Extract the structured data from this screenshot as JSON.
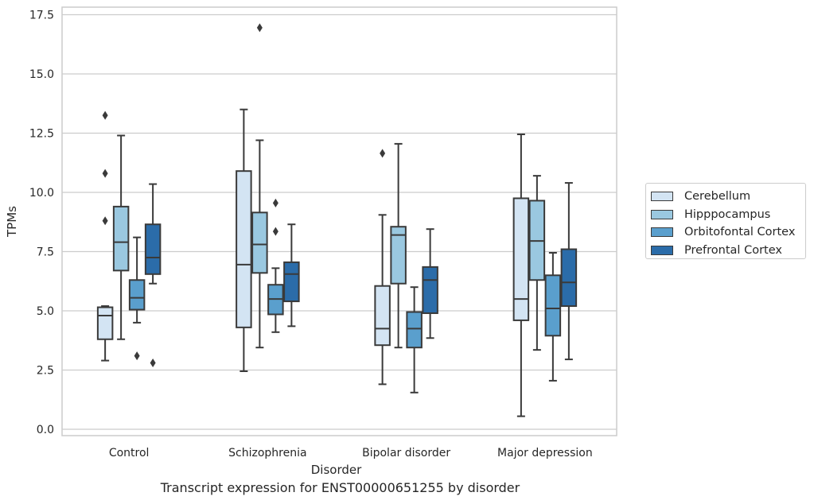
{
  "chart_data": {
    "type": "box",
    "xlabel": "Disorder",
    "ylabel": "TPMs",
    "caption": "Transcript expression for ENST00000651255 by disorder",
    "ylim": [
      -0.2,
      17.7
    ],
    "yticks": [
      "0.0",
      "2.5",
      "5.0",
      "7.5",
      "10.0",
      "12.5",
      "15.0",
      "17.5"
    ],
    "grid": true,
    "legend_position": "right",
    "categories": [
      "Control",
      "Schizophrenia",
      "Bipolar disorder",
      "Major depression"
    ],
    "series": [
      {
        "name": "Cerebellum",
        "color": "#d3e4f3",
        "boxes": [
          {
            "whislo": 2.9,
            "q1": 3.8,
            "med": 4.8,
            "q3": 5.15,
            "whishi": 5.2,
            "fliers": [
              13.25,
              10.8,
              8.8
            ]
          },
          {
            "whislo": 2.45,
            "q1": 4.3,
            "med": 6.95,
            "q3": 10.9,
            "whishi": 13.5,
            "fliers": []
          },
          {
            "whislo": 1.9,
            "q1": 3.55,
            "med": 4.25,
            "q3": 6.05,
            "whishi": 9.05,
            "fliers": [
              11.65
            ]
          },
          {
            "whislo": 0.55,
            "q1": 4.6,
            "med": 5.5,
            "q3": 9.75,
            "whishi": 12.45,
            "fliers": []
          }
        ]
      },
      {
        "name": "Hipppocampus",
        "color": "#9ac8e0",
        "boxes": [
          {
            "whislo": 3.8,
            "q1": 6.7,
            "med": 7.9,
            "q3": 9.4,
            "whishi": 12.4,
            "fliers": []
          },
          {
            "whislo": 3.45,
            "q1": 6.6,
            "med": 7.8,
            "q3": 9.15,
            "whishi": 12.2,
            "fliers": [
              16.95
            ]
          },
          {
            "whislo": 3.45,
            "q1": 6.15,
            "med": 8.2,
            "q3": 8.55,
            "whishi": 12.05,
            "fliers": []
          },
          {
            "whislo": 3.35,
            "q1": 6.3,
            "med": 7.95,
            "q3": 9.65,
            "whishi": 10.7,
            "fliers": []
          }
        ]
      },
      {
        "name": "Orbitofontal Cortex",
        "color": "#5a9fcd",
        "boxes": [
          {
            "whislo": 4.5,
            "q1": 5.05,
            "med": 5.55,
            "q3": 6.3,
            "whishi": 8.1,
            "fliers": [
              3.1
            ]
          },
          {
            "whislo": 4.1,
            "q1": 4.85,
            "med": 5.5,
            "q3": 6.1,
            "whishi": 6.8,
            "fliers": [
              9.55,
              8.35
            ]
          },
          {
            "whislo": 1.55,
            "q1": 3.45,
            "med": 4.25,
            "q3": 4.95,
            "whishi": 6.0,
            "fliers": []
          },
          {
            "whislo": 2.05,
            "q1": 3.95,
            "med": 5.1,
            "q3": 6.5,
            "whishi": 7.45,
            "fliers": []
          }
        ]
      },
      {
        "name": "Prefrontal Cortex",
        "color": "#2b6ca9",
        "boxes": [
          {
            "whislo": 6.15,
            "q1": 6.55,
            "med": 7.25,
            "q3": 8.65,
            "whishi": 10.35,
            "fliers": [
              2.8
            ]
          },
          {
            "whislo": 4.35,
            "q1": 5.4,
            "med": 6.55,
            "q3": 7.05,
            "whishi": 8.65,
            "fliers": []
          },
          {
            "whislo": 3.85,
            "q1": 4.9,
            "med": 6.3,
            "q3": 6.85,
            "whishi": 8.45,
            "fliers": []
          },
          {
            "whislo": 2.95,
            "q1": 5.2,
            "med": 6.2,
            "q3": 7.6,
            "whishi": 10.4,
            "fliers": []
          }
        ]
      }
    ]
  }
}
